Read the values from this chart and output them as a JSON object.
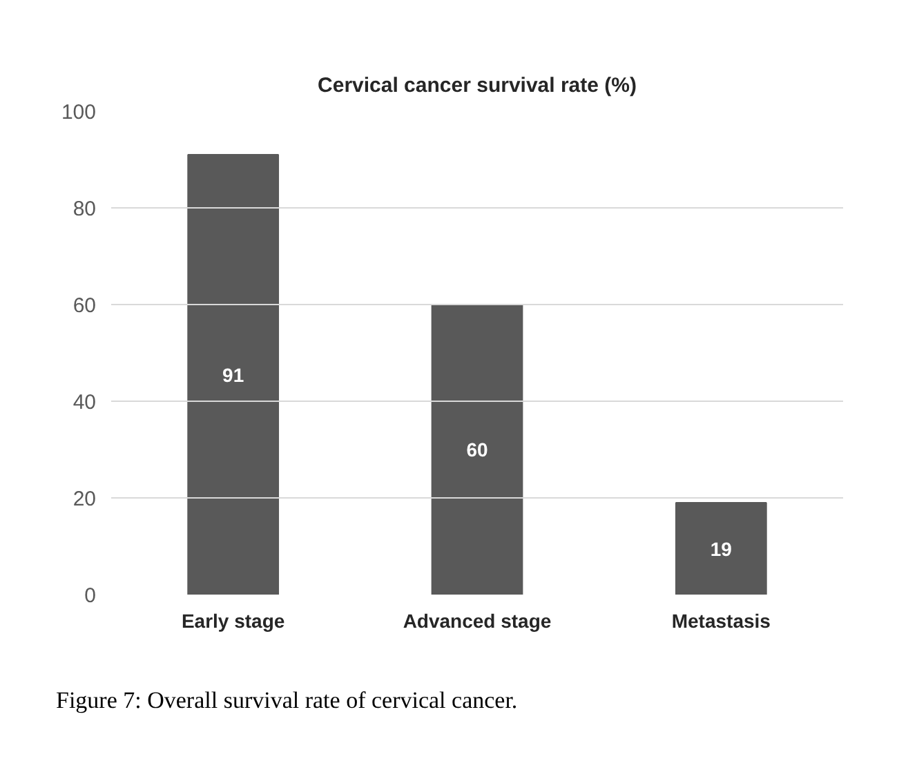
{
  "chart_data": {
    "type": "bar",
    "title": "Cervical cancer survival rate (%)",
    "categories": [
      "Early stage",
      "Advanced stage",
      "Metastasis"
    ],
    "values": [
      91,
      60,
      19
    ],
    "color": "#595959",
    "ylim": [
      0,
      100
    ],
    "yticks": [
      0,
      20,
      40,
      60,
      80,
      100
    ],
    "grid": "y",
    "data_labels": true,
    "annotations": [
      "Figure 7: Overall survival rate of cervical cancer."
    ]
  }
}
